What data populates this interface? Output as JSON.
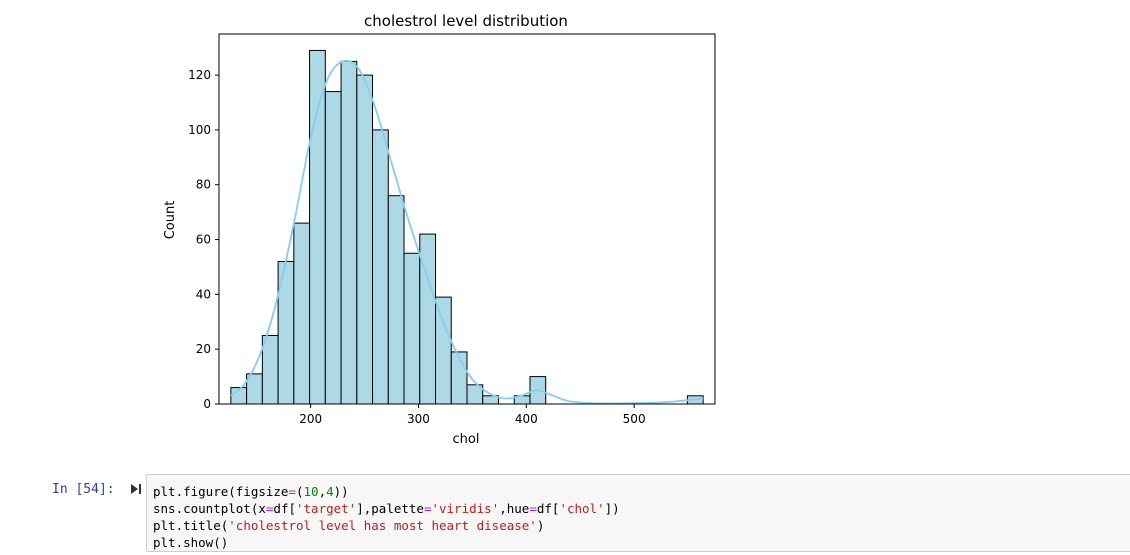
{
  "chart_data": {
    "type": "histogram",
    "title": "cholestrol level distribution",
    "xlabel": "chol",
    "ylabel": "Count",
    "xlim": [
      115,
      575
    ],
    "ylim": [
      0,
      135
    ],
    "xticks": [
      200,
      300,
      400,
      500
    ],
    "yticks": [
      0,
      20,
      40,
      60,
      80,
      100,
      120
    ],
    "bin_edges": [
      126,
      140.6,
      155.2,
      169.8,
      184.4,
      199.0,
      213.6,
      228.2,
      242.8,
      257.4,
      272.0,
      286.6,
      301.2,
      315.8,
      330.4,
      345.0,
      359.6,
      374.2,
      388.8,
      403.4,
      418.0,
      432.6,
      447.2,
      461.8,
      476.4,
      491.0,
      505.6,
      520.2,
      534.8,
      549.4,
      564.0
    ],
    "counts": [
      6,
      11,
      25,
      52,
      66,
      129,
      114,
      125,
      120,
      100,
      76,
      55,
      62,
      39,
      19,
      7,
      3,
      0,
      3,
      10,
      0,
      0,
      0,
      0,
      0,
      0,
      0,
      0,
      0,
      3
    ],
    "kde": {
      "x": [
        126,
        140,
        155,
        170,
        185,
        200,
        215,
        230,
        245,
        260,
        275,
        290,
        305,
        320,
        335,
        350,
        365,
        380,
        395,
        410,
        425,
        440,
        460,
        480,
        500,
        520,
        540,
        564
      ],
      "y": [
        3,
        8,
        20,
        40,
        67,
        97,
        118,
        125,
        122,
        108,
        88,
        68,
        50,
        33,
        19,
        9,
        4,
        2,
        3,
        5,
        3,
        1,
        0.3,
        0.2,
        0.3,
        0.5,
        1,
        2
      ]
    },
    "colors": {
      "bar_fill": "#add8e6",
      "bar_edge": "#000000",
      "kde": "#87ceeb"
    },
    "grid": false
  },
  "cell": {
    "prompt": "In [54]:",
    "code_lines": [
      [
        {
          "t": "plt.figure(figsize"
        },
        {
          "t": "=",
          "c": "tok-op"
        },
        {
          "t": "("
        },
        {
          "t": "10",
          "c": "tok-num"
        },
        {
          "t": ","
        },
        {
          "t": "4",
          "c": "tok-num"
        },
        {
          "t": "))"
        }
      ],
      [
        {
          "t": "sns.countplot(x"
        },
        {
          "t": "=",
          "c": "tok-op"
        },
        {
          "t": "df["
        },
        {
          "t": "'target'",
          "c": "tok-str"
        },
        {
          "t": "],palette"
        },
        {
          "t": "=",
          "c": "tok-op"
        },
        {
          "t": "'viridis'",
          "c": "tok-str"
        },
        {
          "t": ",hue"
        },
        {
          "t": "=",
          "c": "tok-op"
        },
        {
          "t": "df["
        },
        {
          "t": "'chol'",
          "c": "tok-str"
        },
        {
          "t": "])"
        }
      ],
      [
        {
          "t": "plt.title("
        },
        {
          "t": "'cholestrol level has most heart disease'",
          "c": "tok-str"
        },
        {
          "t": ")"
        }
      ],
      [
        {
          "t": "plt.show()"
        }
      ]
    ]
  }
}
